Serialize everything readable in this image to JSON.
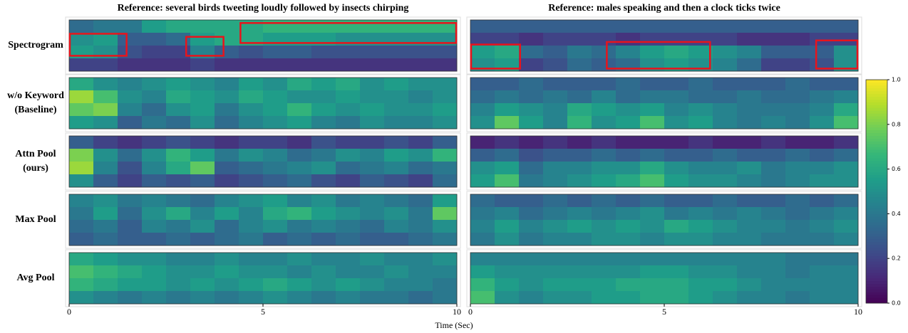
{
  "chart_data": {
    "type": "heatmap",
    "xlabel": "Time (Sec)",
    "xlim": [
      0,
      10
    ],
    "xticks": [
      0,
      5,
      10
    ],
    "row_labels": [
      [
        "Spectrogram"
      ],
      [
        "w/o Keyword",
        "(Baseline)"
      ],
      [
        "Attn Pool",
        "(ours)"
      ],
      [
        "Max Pool"
      ],
      [
        "Avg Pool"
      ]
    ],
    "colorbar": {
      "lim": [
        0,
        1
      ],
      "ticks": [
        {
          "value": 0,
          "label": "0.0"
        },
        0.2,
        0.4,
        0.6,
        0.8,
        {
          "value": 1,
          "label": "1.0"
        }
      ]
    },
    "box_color": "#e8141c",
    "columns": [
      {
        "title": "Reference: several birds tweeting loudly followed by insects chirping",
        "boxes": [
          [
            0,
            1.5
          ],
          [
            3,
            4
          ],
          [
            4.4,
            10
          ]
        ],
        "panels": [
          [
            [
              0.35,
              0.4,
              0.4,
              0.55,
              0.6,
              0.6,
              0.6,
              0.6,
              0.65,
              0.65,
              0.65,
              0.65,
              0.65,
              0.65,
              0.65,
              0.65
            ],
            [
              0.5,
              0.55,
              0.3,
              0.3,
              0.35,
              0.55,
              0.6,
              0.6,
              0.55,
              0.55,
              0.55,
              0.5,
              0.5,
              0.5,
              0.5,
              0.5
            ],
            [
              0.55,
              0.5,
              0.25,
              0.2,
              0.2,
              0.45,
              0.3,
              0.25,
              0.3,
              0.3,
              0.25,
              0.25,
              0.25,
              0.25,
              0.25,
              0.25
            ],
            [
              0.2,
              0.2,
              0.15,
              0.15,
              0.15,
              0.2,
              0.15,
              0.15,
              0.15,
              0.15,
              0.15,
              0.15,
              0.15,
              0.15,
              0.15,
              0.15
            ]
          ],
          [
            [
              0.6,
              0.5,
              0.45,
              0.5,
              0.55,
              0.5,
              0.45,
              0.55,
              0.5,
              0.6,
              0.55,
              0.6,
              0.5,
              0.55,
              0.5,
              0.5
            ],
            [
              0.85,
              0.7,
              0.5,
              0.45,
              0.6,
              0.55,
              0.5,
              0.6,
              0.55,
              0.5,
              0.5,
              0.55,
              0.5,
              0.5,
              0.45,
              0.5
            ],
            [
              0.75,
              0.8,
              0.45,
              0.35,
              0.5,
              0.55,
              0.4,
              0.5,
              0.55,
              0.65,
              0.55,
              0.5,
              0.55,
              0.5,
              0.5,
              0.55
            ],
            [
              0.55,
              0.5,
              0.3,
              0.4,
              0.35,
              0.5,
              0.35,
              0.45,
              0.5,
              0.55,
              0.45,
              0.4,
              0.5,
              0.45,
              0.45,
              0.5
            ]
          ],
          [
            [
              0.3,
              0.2,
              0.15,
              0.2,
              0.25,
              0.2,
              0.15,
              0.2,
              0.2,
              0.15,
              0.25,
              0.2,
              0.2,
              0.25,
              0.2,
              0.3
            ],
            [
              0.8,
              0.5,
              0.35,
              0.5,
              0.65,
              0.55,
              0.4,
              0.5,
              0.45,
              0.35,
              0.4,
              0.5,
              0.45,
              0.55,
              0.5,
              0.65
            ],
            [
              0.85,
              0.45,
              0.25,
              0.45,
              0.6,
              0.75,
              0.3,
              0.35,
              0.4,
              0.45,
              0.5,
              0.35,
              0.4,
              0.45,
              0.35,
              0.4
            ],
            [
              0.5,
              0.3,
              0.2,
              0.3,
              0.25,
              0.3,
              0.2,
              0.25,
              0.3,
              0.35,
              0.25,
              0.2,
              0.3,
              0.25,
              0.2,
              0.35
            ]
          ],
          [
            [
              0.45,
              0.5,
              0.4,
              0.45,
              0.4,
              0.35,
              0.45,
              0.5,
              0.55,
              0.45,
              0.5,
              0.4,
              0.45,
              0.4,
              0.35,
              0.55
            ],
            [
              0.4,
              0.55,
              0.35,
              0.5,
              0.6,
              0.45,
              0.55,
              0.45,
              0.6,
              0.65,
              0.55,
              0.5,
              0.45,
              0.5,
              0.4,
              0.75
            ],
            [
              0.35,
              0.4,
              0.3,
              0.45,
              0.4,
              0.5,
              0.35,
              0.45,
              0.5,
              0.4,
              0.45,
              0.4,
              0.35,
              0.45,
              0.4,
              0.5
            ],
            [
              0.3,
              0.35,
              0.3,
              0.3,
              0.35,
              0.3,
              0.35,
              0.4,
              0.3,
              0.35,
              0.3,
              0.35,
              0.3,
              0.3,
              0.35,
              0.4
            ]
          ],
          [
            [
              0.6,
              0.55,
              0.5,
              0.5,
              0.45,
              0.45,
              0.5,
              0.45,
              0.45,
              0.5,
              0.45,
              0.45,
              0.5,
              0.45,
              0.45,
              0.5
            ],
            [
              0.7,
              0.65,
              0.6,
              0.55,
              0.5,
              0.5,
              0.55,
              0.5,
              0.5,
              0.45,
              0.5,
              0.45,
              0.45,
              0.5,
              0.45,
              0.45
            ],
            [
              0.65,
              0.6,
              0.55,
              0.55,
              0.5,
              0.55,
              0.5,
              0.55,
              0.6,
              0.55,
              0.5,
              0.55,
              0.5,
              0.45,
              0.45,
              0.4
            ],
            [
              0.5,
              0.45,
              0.4,
              0.45,
              0.4,
              0.45,
              0.4,
              0.45,
              0.5,
              0.45,
              0.4,
              0.45,
              0.4,
              0.4,
              0.35,
              0.4
            ]
          ]
        ]
      },
      {
        "title": "Reference: males speaking and then a clock ticks twice",
        "boxes": [
          [
            0,
            1.3
          ],
          [
            3.5,
            6.2
          ],
          [
            8.9,
            10
          ]
        ],
        "panels": [
          [
            [
              0.3,
              0.3,
              0.3,
              0.3,
              0.3,
              0.3,
              0.3,
              0.3,
              0.3,
              0.3,
              0.3,
              0.3,
              0.3,
              0.3,
              0.3,
              0.3
            ],
            [
              0.2,
              0.2,
              0.15,
              0.2,
              0.2,
              0.2,
              0.15,
              0.2,
              0.2,
              0.2,
              0.2,
              0.15,
              0.15,
              0.15,
              0.2,
              0.2
            ],
            [
              0.55,
              0.6,
              0.35,
              0.3,
              0.4,
              0.35,
              0.45,
              0.55,
              0.6,
              0.55,
              0.5,
              0.45,
              0.3,
              0.3,
              0.3,
              0.5
            ],
            [
              0.5,
              0.55,
              0.2,
              0.25,
              0.35,
              0.3,
              0.35,
              0.5,
              0.55,
              0.5,
              0.45,
              0.35,
              0.2,
              0.2,
              0.25,
              0.5
            ]
          ],
          [
            [
              0.3,
              0.3,
              0.35,
              0.3,
              0.3,
              0.3,
              0.35,
              0.3,
              0.3,
              0.35,
              0.3,
              0.3,
              0.3,
              0.35,
              0.3,
              0.3
            ],
            [
              0.35,
              0.4,
              0.35,
              0.4,
              0.35,
              0.45,
              0.35,
              0.4,
              0.4,
              0.35,
              0.35,
              0.4,
              0.35,
              0.35,
              0.4,
              0.45
            ],
            [
              0.45,
              0.55,
              0.5,
              0.45,
              0.6,
              0.55,
              0.5,
              0.55,
              0.45,
              0.5,
              0.45,
              0.4,
              0.4,
              0.4,
              0.45,
              0.6
            ],
            [
              0.5,
              0.75,
              0.55,
              0.45,
              0.65,
              0.5,
              0.55,
              0.7,
              0.5,
              0.55,
              0.45,
              0.4,
              0.45,
              0.4,
              0.5,
              0.7
            ]
          ],
          [
            [
              0.1,
              0.15,
              0.1,
              0.15,
              0.1,
              0.15,
              0.1,
              0.1,
              0.1,
              0.15,
              0.1,
              0.1,
              0.15,
              0.1,
              0.1,
              0.15
            ],
            [
              0.3,
              0.35,
              0.25,
              0.3,
              0.3,
              0.35,
              0.3,
              0.35,
              0.3,
              0.3,
              0.35,
              0.3,
              0.3,
              0.35,
              0.3,
              0.35
            ],
            [
              0.5,
              0.55,
              0.35,
              0.45,
              0.45,
              0.5,
              0.5,
              0.6,
              0.5,
              0.45,
              0.45,
              0.5,
              0.4,
              0.45,
              0.45,
              0.5
            ],
            [
              0.55,
              0.7,
              0.4,
              0.45,
              0.5,
              0.55,
              0.6,
              0.7,
              0.55,
              0.5,
              0.5,
              0.45,
              0.4,
              0.45,
              0.5,
              0.5
            ]
          ],
          [
            [
              0.35,
              0.3,
              0.3,
              0.35,
              0.3,
              0.35,
              0.3,
              0.35,
              0.3,
              0.3,
              0.35,
              0.3,
              0.3,
              0.35,
              0.3,
              0.35
            ],
            [
              0.4,
              0.45,
              0.35,
              0.4,
              0.45,
              0.4,
              0.45,
              0.5,
              0.4,
              0.45,
              0.4,
              0.45,
              0.4,
              0.35,
              0.4,
              0.45
            ],
            [
              0.45,
              0.55,
              0.45,
              0.5,
              0.55,
              0.5,
              0.55,
              0.5,
              0.6,
              0.55,
              0.5,
              0.45,
              0.45,
              0.4,
              0.45,
              0.5
            ],
            [
              0.4,
              0.5,
              0.4,
              0.45,
              0.45,
              0.5,
              0.5,
              0.45,
              0.5,
              0.5,
              0.45,
              0.45,
              0.4,
              0.4,
              0.4,
              0.45
            ]
          ],
          [
            [
              0.45,
              0.45,
              0.45,
              0.45,
              0.45,
              0.45,
              0.45,
              0.45,
              0.45,
              0.45,
              0.45,
              0.45,
              0.45,
              0.4,
              0.4,
              0.4
            ],
            [
              0.55,
              0.5,
              0.5,
              0.5,
              0.5,
              0.5,
              0.5,
              0.55,
              0.55,
              0.5,
              0.5,
              0.45,
              0.45,
              0.4,
              0.45,
              0.45
            ],
            [
              0.65,
              0.55,
              0.5,
              0.55,
              0.55,
              0.55,
              0.6,
              0.6,
              0.6,
              0.55,
              0.55,
              0.5,
              0.45,
              0.45,
              0.45,
              0.45
            ],
            [
              0.7,
              0.5,
              0.45,
              0.5,
              0.5,
              0.55,
              0.55,
              0.6,
              0.6,
              0.55,
              0.5,
              0.45,
              0.45,
              0.4,
              0.45,
              0.45
            ]
          ]
        ]
      }
    ]
  }
}
